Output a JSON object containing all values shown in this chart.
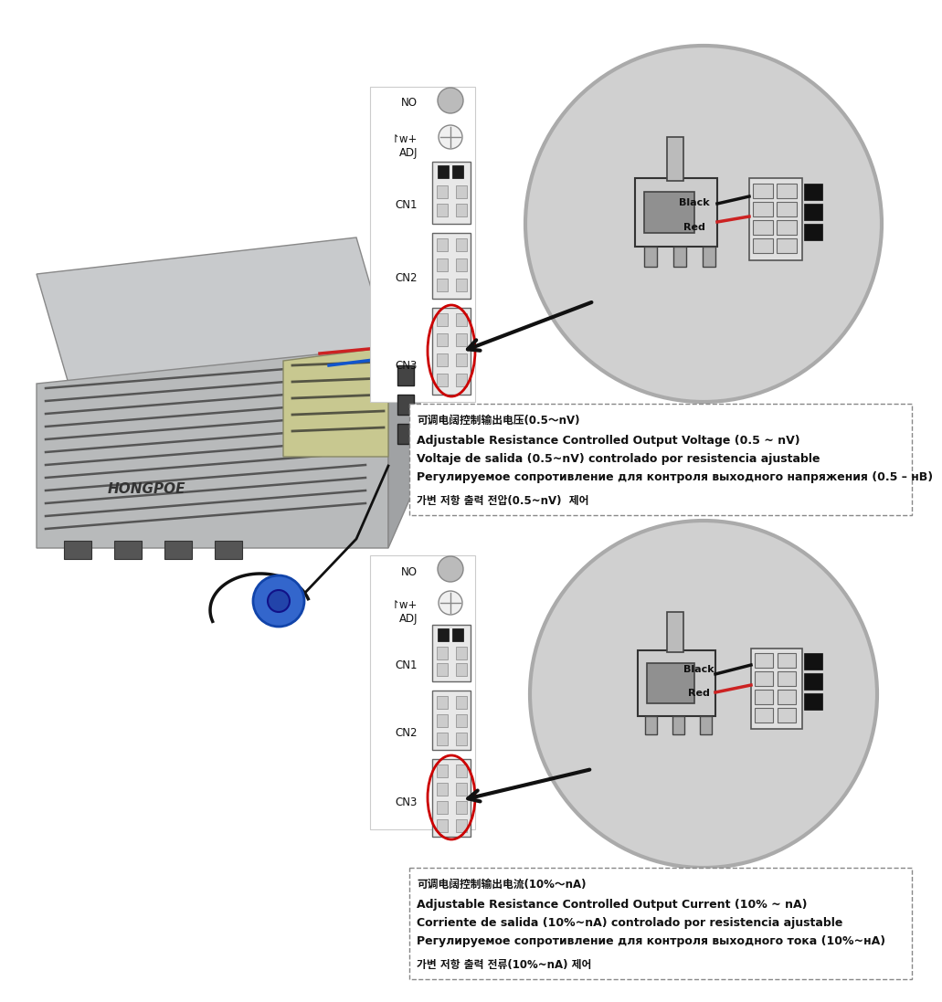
{
  "bg_color": "#ffffff",
  "fig_width": 10.0,
  "fig_height": 10.77,
  "text_box1_lines": [
    "可调电阔控制输出电压(0.5～nV)",
    "Adjustable Resistance Controlled Output Voltage (0.5 ~ nV)",
    "Voltaje de salida (0.5~nV) controlado por resistencia ajustable",
    "Регулируемое сопротивление для контроля выходного напряжения (0.5 – нB)",
    "가변 저항 출력 전압(0.5~nV)  제어"
  ],
  "text_box2_lines": [
    "可调电阔控制输出电流(10%～nA)",
    "Adjustable Resistance Controlled Output Current (10% ~ nA)",
    "Corriente de salida (10%~nA) controlado por resistencia ajustable",
    "Регулируемое сопротивление для контроля выходного тока (10%~нA)",
    "가변 저항 출력 전류(10%~nA) 제어"
  ],
  "ps_color_top": "#c0c4c8",
  "ps_color_side": "#a0a4a8",
  "ps_color_front": "#b0b4b8",
  "ps_vent_color": "#404040",
  "panel_bg": "#f5f5f5",
  "panel_border": "#aaaaaa",
  "connector_bg": "#e8e8e8",
  "connector_border": "#555555",
  "pin_filled": "#1a1a1a",
  "pin_empty": "#cccccc",
  "red_oval_color": "#cc0000",
  "circle_gray": "#b0b0b0",
  "oval_bg": "#cccccc",
  "oval_border": "#999999",
  "arrow_color": "#111111",
  "wire_black": "#111111",
  "wire_red": "#cc2222",
  "text_color": "#111111",
  "label_fontsize": 8.5,
  "textbox_fontsize": 8.0
}
